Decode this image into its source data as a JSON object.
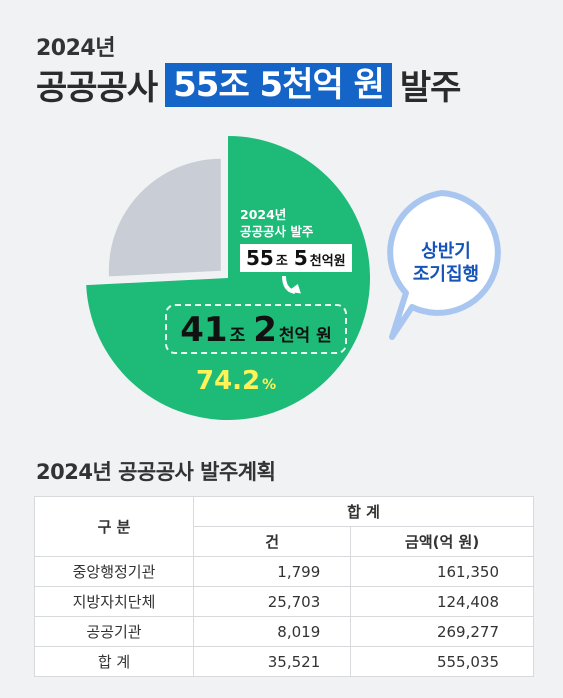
{
  "header": {
    "year": "2024년",
    "title_prefix": "공공공사",
    "title_highlight": "55조 5천억 원",
    "title_suffix": "발주"
  },
  "pie": {
    "label_line1": "2024년",
    "label_line2": "공공공사 발주",
    "total_num1": "55",
    "total_unit1": "조",
    "total_num2": "5",
    "total_unit2": "천억원",
    "first_half_num1": "41",
    "first_half_unit1": "조",
    "first_half_num2": "2",
    "first_half_unit2": "천억 원",
    "ratio_num": "74.2",
    "ratio_unit": "%"
  },
  "bubble": {
    "line1": "상반기",
    "line2": "조기집행"
  },
  "table": {
    "title": "2024년 공공공사 발주계획",
    "header_gubun": "구 분",
    "header_total": "합 계",
    "header_count": "건",
    "header_amount": "금액(억 원)",
    "rows": [
      {
        "name": "중앙행정기관",
        "count": "1,799",
        "amount": "161,350"
      },
      {
        "name": "지방자치단체",
        "count": "25,703",
        "amount": "124,408"
      },
      {
        "name": "공공기관",
        "count": "8,019",
        "amount": "269,277"
      },
      {
        "name": "합 계",
        "count": "35,521",
        "amount": "555,035"
      }
    ]
  },
  "colors": {
    "green": "#1dba78",
    "gray": "#c9ced6",
    "blue": "#1565c8",
    "yellow": "#fff35a",
    "bubble_border": "#a9c6f0"
  },
  "chart_data": {
    "type": "pie",
    "values": [
      74.2,
      25.8
    ],
    "highlight_value": 74.2,
    "unit": "%"
  }
}
